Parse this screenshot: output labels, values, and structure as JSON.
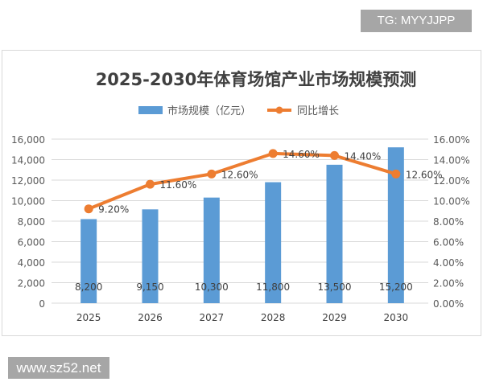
{
  "badges": {
    "top_right": "TG: MYYJJPP",
    "bottom_left": "www.sz52.net"
  },
  "chart_data": {
    "type": "bar+line",
    "title": "2025-2030年体育场馆产业市场规模预测",
    "categories": [
      "2025",
      "2026",
      "2027",
      "2028",
      "2029",
      "2030"
    ],
    "series": [
      {
        "name": "市场规模（亿元）",
        "type": "bar",
        "axis": "left",
        "color": "#5b9bd5",
        "values": [
          8200,
          9150,
          10300,
          11800,
          13500,
          15200
        ],
        "labels": [
          "8,200",
          "9,150",
          "10,300",
          "11,800",
          "13,500",
          "15,200"
        ]
      },
      {
        "name": "同比增长",
        "type": "line",
        "axis": "right",
        "color": "#ed7d31",
        "values": [
          9.2,
          11.6,
          12.6,
          14.6,
          14.4,
          12.6
        ],
        "labels": [
          "9.20%",
          "11.60%",
          "12.60%",
          "14.60%",
          "14.40%",
          "12.60%"
        ]
      }
    ],
    "left_axis": {
      "ylim": [
        0,
        16000
      ],
      "ticks": [
        "0",
        "2,000",
        "4,000",
        "6,000",
        "8,000",
        "10,000",
        "12,000",
        "14,000",
        "16,000"
      ]
    },
    "right_axis": {
      "ylim": [
        0,
        16
      ],
      "ticks": [
        "0.00%",
        "2.00%",
        "4.00%",
        "6.00%",
        "8.00%",
        "10.00%",
        "12.00%",
        "14.00%",
        "16.00%"
      ]
    },
    "grid": true,
    "legend": "top"
  }
}
